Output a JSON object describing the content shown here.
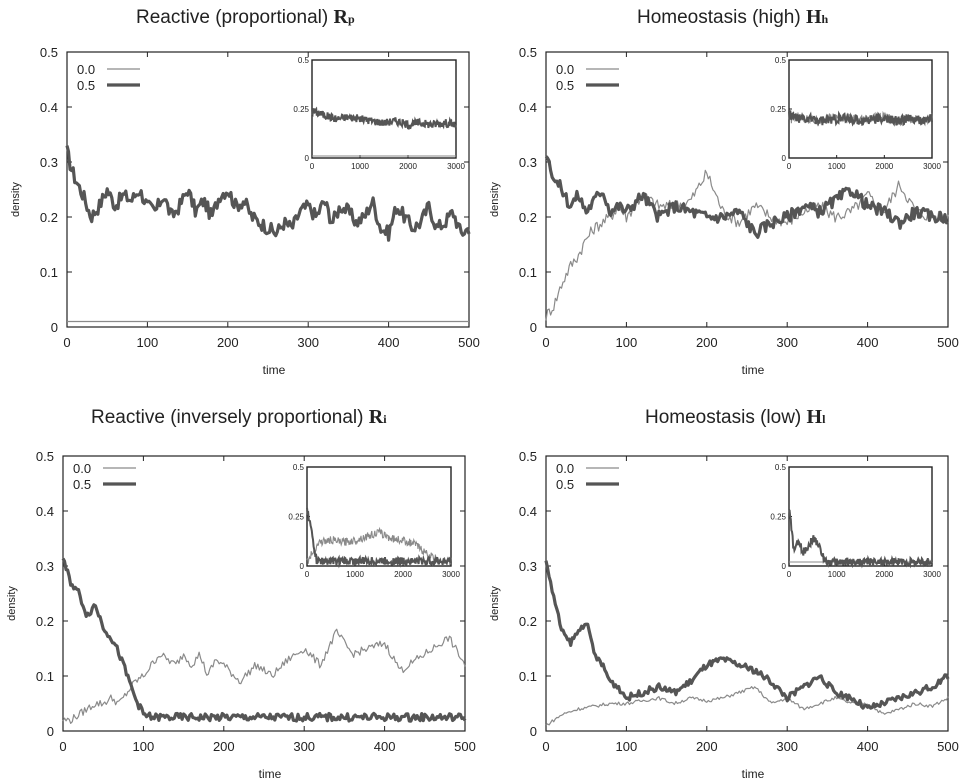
{
  "chart_data": [
    {
      "type": "line",
      "title": "Reactive (proportional)",
      "title_symbol": "R",
      "title_subscript": "p",
      "xlabel": "time",
      "ylabel": "density",
      "xlim": [
        0,
        500
      ],
      "ylim": [
        0,
        0.5
      ],
      "xticks": [
        0,
        100,
        200,
        300,
        400,
        500
      ],
      "yticks": [
        0,
        0.1,
        0.2,
        0.3,
        0.4,
        0.5
      ],
      "legend_position": "top-left",
      "series": [
        {
          "name": "0.0",
          "color": "#8a8a8a",
          "x": [
            0,
            500
          ],
          "y": [
            0.01,
            0.01
          ]
        },
        {
          "name": "0.5",
          "color": "#555555",
          "x": [
            0,
            5,
            10,
            20,
            30,
            40,
            50,
            60,
            70,
            80,
            90,
            100,
            110,
            120,
            130,
            140,
            150,
            160,
            170,
            180,
            190,
            200,
            210,
            220,
            230,
            240,
            250,
            260,
            270,
            280,
            290,
            300,
            310,
            320,
            330,
            340,
            350,
            360,
            370,
            380,
            390,
            400,
            410,
            420,
            430,
            440,
            450,
            460,
            470,
            480,
            490,
            500
          ],
          "y": [
            0.32,
            0.29,
            0.27,
            0.24,
            0.2,
            0.22,
            0.25,
            0.22,
            0.24,
            0.23,
            0.25,
            0.22,
            0.21,
            0.24,
            0.2,
            0.22,
            0.25,
            0.21,
            0.23,
            0.2,
            0.24,
            0.25,
            0.22,
            0.23,
            0.2,
            0.19,
            0.18,
            0.17,
            0.19,
            0.18,
            0.21,
            0.22,
            0.2,
            0.23,
            0.19,
            0.22,
            0.21,
            0.19,
            0.2,
            0.23,
            0.18,
            0.17,
            0.22,
            0.2,
            0.18,
            0.19,
            0.22,
            0.18,
            0.19,
            0.21,
            0.17,
            0.18
          ]
        }
      ],
      "inset": {
        "xlim": [
          0,
          3000
        ],
        "ylim": [
          0,
          0.5
        ],
        "xticks": [
          0,
          1000,
          2000,
          3000
        ],
        "yticks": [
          0,
          0.25,
          0.5
        ],
        "series": [
          {
            "name": "0.0",
            "x": [
              0,
              3000
            ],
            "y": [
              0.01,
              0.01
            ]
          },
          {
            "name": "0.5",
            "x": [
              0,
              250,
              500,
              750,
              1000,
              1250,
              1500,
              1750,
              2000,
              2250,
              2500,
              2750,
              3000
            ],
            "y": [
              0.24,
              0.22,
              0.2,
              0.21,
              0.2,
              0.19,
              0.18,
              0.19,
              0.17,
              0.18,
              0.17,
              0.18,
              0.17
            ]
          }
        ]
      }
    },
    {
      "type": "line",
      "title": "Homeostasis (high)",
      "title_symbol": "H",
      "title_subscript": "h",
      "xlabel": "time",
      "ylabel": "density",
      "xlim": [
        0,
        500
      ],
      "ylim": [
        0,
        0.5
      ],
      "xticks": [
        0,
        100,
        200,
        300,
        400,
        500
      ],
      "yticks": [
        0,
        0.1,
        0.2,
        0.3,
        0.4,
        0.5
      ],
      "legend_position": "top-left",
      "series": [
        {
          "name": "0.0",
          "color": "#8a8a8a",
          "x": [
            0,
            10,
            20,
            30,
            40,
            50,
            60,
            70,
            80,
            90,
            100,
            120,
            140,
            160,
            180,
            200,
            220,
            240,
            260,
            280,
            300,
            320,
            340,
            360,
            380,
            400,
            420,
            440,
            460,
            480,
            500
          ],
          "y": [
            0.02,
            0.04,
            0.08,
            0.11,
            0.13,
            0.16,
            0.18,
            0.19,
            0.2,
            0.22,
            0.2,
            0.24,
            0.22,
            0.22,
            0.23,
            0.28,
            0.21,
            0.19,
            0.22,
            0.2,
            0.19,
            0.21,
            0.22,
            0.2,
            0.21,
            0.24,
            0.21,
            0.26,
            0.21,
            0.2,
            0.2
          ]
        },
        {
          "name": "0.5",
          "color": "#555555",
          "x": [
            0,
            10,
            20,
            30,
            40,
            50,
            60,
            70,
            80,
            90,
            100,
            120,
            140,
            160,
            180,
            200,
            220,
            240,
            260,
            280,
            300,
            320,
            340,
            360,
            380,
            400,
            420,
            440,
            460,
            480,
            500
          ],
          "y": [
            0.32,
            0.27,
            0.25,
            0.22,
            0.24,
            0.21,
            0.23,
            0.25,
            0.21,
            0.22,
            0.21,
            0.24,
            0.2,
            0.22,
            0.21,
            0.2,
            0.2,
            0.21,
            0.17,
            0.19,
            0.2,
            0.22,
            0.21,
            0.23,
            0.25,
            0.22,
            0.21,
            0.19,
            0.21,
            0.2,
            0.2
          ]
        }
      ],
      "inset": {
        "xlim": [
          0,
          3000
        ],
        "ylim": [
          0,
          0.5
        ],
        "xticks": [
          0,
          1000,
          2000,
          3000
        ],
        "yticks": [
          0,
          0.25,
          0.5
        ],
        "series": [
          {
            "name": "0.0",
            "x": [
              0,
              250,
              500,
              750,
              1000,
              1250,
              1500,
              1750,
              2000,
              2250,
              2500,
              2750,
              3000
            ],
            "y": [
              0.2,
              0.21,
              0.19,
              0.2,
              0.21,
              0.2,
              0.19,
              0.2,
              0.21,
              0.19,
              0.2,
              0.19,
              0.2
            ]
          },
          {
            "name": "0.5",
            "x": [
              0,
              250,
              500,
              750,
              1000,
              1250,
              1500,
              1750,
              2000,
              2250,
              2500,
              2750,
              3000
            ],
            "y": [
              0.22,
              0.2,
              0.2,
              0.19,
              0.2,
              0.2,
              0.19,
              0.2,
              0.2,
              0.19,
              0.2,
              0.19,
              0.2
            ]
          }
        ]
      }
    },
    {
      "type": "line",
      "title": "Reactive (inversely proportional)",
      "title_symbol": "R",
      "title_subscript": "i",
      "xlabel": "time",
      "ylabel": "density",
      "xlim": [
        0,
        500
      ],
      "ylim": [
        0,
        0.5
      ],
      "xticks": [
        0,
        100,
        200,
        300,
        400,
        500
      ],
      "yticks": [
        0,
        0.1,
        0.2,
        0.3,
        0.4,
        0.5
      ],
      "legend_position": "top-left",
      "series": [
        {
          "name": "0.0",
          "color": "#8a8a8a",
          "x": [
            0,
            10,
            20,
            30,
            40,
            50,
            60,
            70,
            80,
            90,
            100,
            110,
            120,
            130,
            140,
            150,
            160,
            170,
            180,
            190,
            200,
            220,
            240,
            260,
            280,
            300,
            320,
            340,
            360,
            380,
            400,
            420,
            440,
            460,
            480,
            500
          ],
          "y": [
            0.02,
            0.02,
            0.03,
            0.04,
            0.05,
            0.05,
            0.06,
            0.05,
            0.07,
            0.09,
            0.1,
            0.12,
            0.14,
            0.13,
            0.12,
            0.14,
            0.12,
            0.14,
            0.1,
            0.13,
            0.12,
            0.09,
            0.12,
            0.1,
            0.13,
            0.15,
            0.12,
            0.18,
            0.14,
            0.15,
            0.16,
            0.11,
            0.13,
            0.15,
            0.17,
            0.12
          ]
        },
        {
          "name": "0.5",
          "color": "#555555",
          "x": [
            0,
            10,
            20,
            30,
            40,
            50,
            60,
            70,
            80,
            90,
            100,
            110,
            120,
            500
          ],
          "y": [
            0.31,
            0.27,
            0.25,
            0.21,
            0.23,
            0.19,
            0.17,
            0.14,
            0.1,
            0.06,
            0.03,
            0.025,
            0.025,
            0.025
          ]
        }
      ],
      "inset": {
        "xlim": [
          0,
          3000
        ],
        "ylim": [
          0,
          0.5
        ],
        "xticks": [
          0,
          1000,
          2000,
          3000
        ],
        "yticks": [
          0,
          0.25,
          0.5
        ],
        "series": [
          {
            "name": "0.0",
            "x": [
              0,
              250,
              500,
              750,
              1000,
              1250,
              1500,
              1750,
              2000,
              2250,
              2500,
              2750,
              3000
            ],
            "y": [
              0.02,
              0.12,
              0.13,
              0.12,
              0.13,
              0.15,
              0.17,
              0.14,
              0.13,
              0.11,
              0.06,
              0.03,
              0.02
            ]
          },
          {
            "name": "0.5",
            "x": [
              0,
              200,
              3000
            ],
            "y": [
              0.3,
              0.025,
              0.025
            ]
          }
        ]
      }
    },
    {
      "type": "line",
      "title": "Homeostasis (low)",
      "title_symbol": "H",
      "title_subscript": "l",
      "xlabel": "time",
      "ylabel": "density",
      "xlim": [
        0,
        500
      ],
      "ylim": [
        0,
        0.5
      ],
      "xticks": [
        0,
        100,
        200,
        300,
        400,
        500
      ],
      "yticks": [
        0,
        0.1,
        0.2,
        0.3,
        0.4,
        0.5
      ],
      "legend_position": "top-left",
      "series": [
        {
          "name": "0.0",
          "color": "#8a8a8a",
          "x": [
            0,
            10,
            20,
            40,
            60,
            80,
            100,
            120,
            140,
            160,
            180,
            200,
            220,
            240,
            260,
            280,
            300,
            320,
            340,
            360,
            380,
            400,
            420,
            440,
            460,
            480,
            500
          ],
          "y": [
            0.01,
            0.02,
            0.03,
            0.04,
            0.045,
            0.05,
            0.05,
            0.055,
            0.06,
            0.05,
            0.06,
            0.055,
            0.06,
            0.07,
            0.08,
            0.05,
            0.06,
            0.04,
            0.05,
            0.06,
            0.05,
            0.05,
            0.03,
            0.04,
            0.05,
            0.045,
            0.06
          ]
        },
        {
          "name": "0.5",
          "color": "#555555",
          "x": [
            0,
            10,
            20,
            30,
            40,
            50,
            60,
            70,
            80,
            90,
            100,
            120,
            140,
            160,
            180,
            200,
            220,
            240,
            260,
            280,
            300,
            320,
            340,
            360,
            380,
            400,
            420,
            440,
            460,
            480,
            500
          ],
          "y": [
            0.31,
            0.24,
            0.18,
            0.16,
            0.18,
            0.2,
            0.14,
            0.12,
            0.09,
            0.08,
            0.06,
            0.07,
            0.08,
            0.07,
            0.09,
            0.12,
            0.13,
            0.12,
            0.11,
            0.09,
            0.06,
            0.08,
            0.1,
            0.07,
            0.06,
            0.04,
            0.05,
            0.06,
            0.07,
            0.08,
            0.1
          ]
        }
      ],
      "inset": {
        "xlim": [
          0,
          3000
        ],
        "ylim": [
          0,
          0.5
        ],
        "xticks": [
          0,
          1000,
          2000,
          3000
        ],
        "yticks": [
          0,
          0.25,
          0.5
        ],
        "series": [
          {
            "name": "0.0",
            "x": [
              0,
              3000
            ],
            "y": [
              0.02,
              0.02
            ]
          },
          {
            "name": "0.5",
            "x": [
              0,
              100,
              200,
              300,
              400,
              500,
              600,
              700,
              800,
              3000
            ],
            "y": [
              0.3,
              0.08,
              0.12,
              0.07,
              0.1,
              0.14,
              0.12,
              0.05,
              0.02,
              0.02
            ]
          }
        ]
      }
    }
  ]
}
